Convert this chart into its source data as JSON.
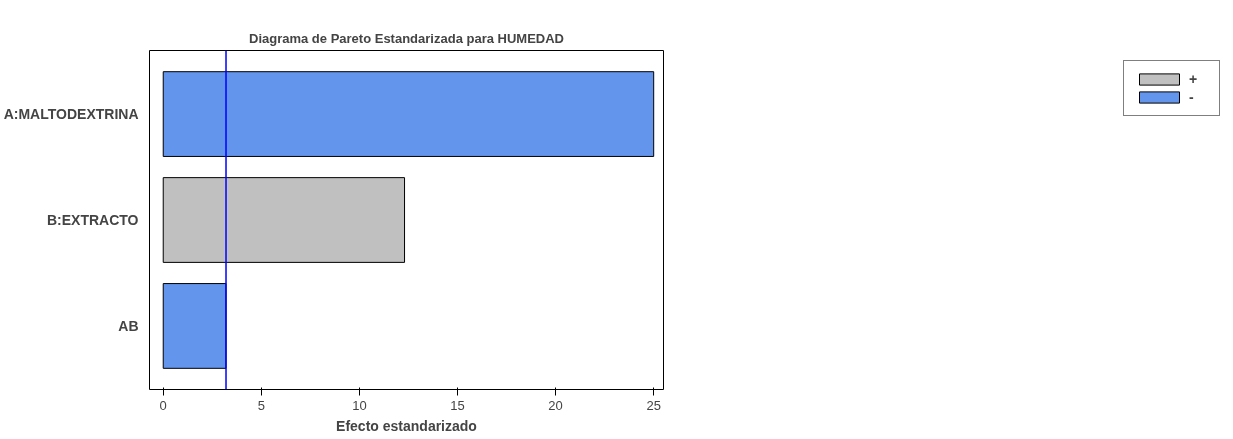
{
  "chart_data": {
    "type": "bar",
    "orientation": "horizontal",
    "title": "Diagrama de Pareto Estandarizada para HUMEDAD",
    "xlabel": "Efecto estandarizado",
    "categories": [
      "A:MALTODEXTRINA",
      "B:EXTRACTO",
      "AB"
    ],
    "series": [
      {
        "name": "+",
        "color": "#c0c0c0",
        "values": [
          null,
          12.3,
          null
        ]
      },
      {
        "name": "-",
        "color": "#6495ed",
        "values": [
          25,
          null,
          3.2
        ]
      }
    ],
    "xlim": [
      -0.7,
      25.5
    ],
    "xticks": [
      0,
      5,
      10,
      15,
      20,
      25
    ],
    "grid": false,
    "legend": "top right",
    "ref_lines": [
      {
        "axis": "x",
        "value": 3.2,
        "color": "#0000ff"
      }
    ]
  }
}
